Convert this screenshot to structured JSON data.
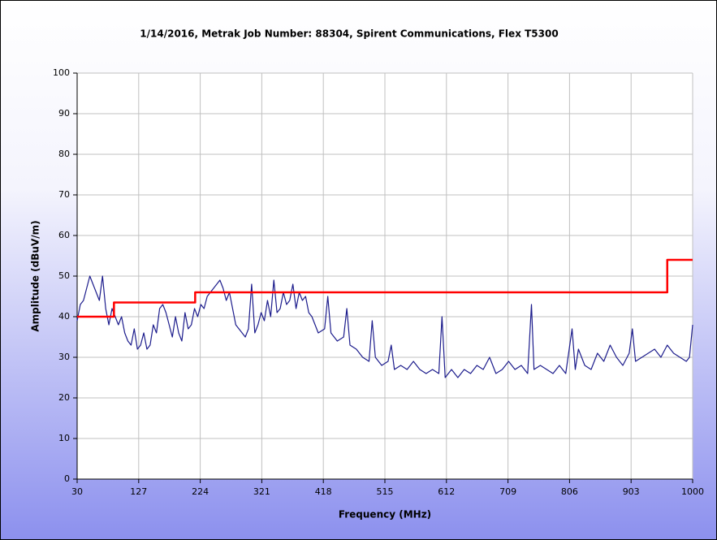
{
  "chart_data": {
    "type": "line",
    "title": "1/14/2016, Metrak Job Number: 88304, Spirent Communications, Flex T5300",
    "x_label": "Frequency (MHz)",
    "y_label": "Amplitude (dBuV/m)",
    "xlim": [
      30,
      1000
    ],
    "xticks": [
      30,
      127,
      224,
      321,
      418,
      515,
      612,
      709,
      806,
      903,
      1000
    ],
    "ylim": [
      0,
      100
    ],
    "yticks": [
      0,
      10,
      20,
      30,
      40,
      50,
      60,
      70,
      80,
      90,
      100
    ],
    "grid": true,
    "series": [
      {
        "color": "#1c1c8c",
        "x": [
          30,
          35,
          40,
          45,
          50,
          55,
          60,
          65,
          70,
          75,
          80,
          85,
          90,
          95,
          100,
          105,
          110,
          115,
          120,
          125,
          130,
          135,
          140,
          145,
          150,
          155,
          160,
          165,
          170,
          175,
          180,
          185,
          190,
          195,
          200,
          205,
          210,
          215,
          220,
          225,
          230,
          235,
          240,
          245,
          250,
          255,
          260,
          265,
          270,
          275,
          280,
          285,
          290,
          295,
          300,
          305,
          310,
          315,
          320,
          325,
          330,
          335,
          340,
          345,
          350,
          355,
          360,
          365,
          370,
          375,
          380,
          385,
          390,
          395,
          400,
          410,
          420,
          425,
          430,
          440,
          450,
          455,
          460,
          470,
          480,
          490,
          495,
          500,
          510,
          520,
          525,
          530,
          540,
          550,
          560,
          570,
          580,
          590,
          600,
          605,
          610,
          620,
          630,
          640,
          650,
          660,
          670,
          680,
          690,
          700,
          710,
          720,
          730,
          740,
          746,
          750,
          760,
          770,
          780,
          790,
          800,
          810,
          815,
          820,
          830,
          840,
          850,
          860,
          870,
          880,
          890,
          900,
          905,
          910,
          920,
          930,
          940,
          950,
          960,
          970,
          980,
          990,
          995,
          1000
        ],
        "values": [
          39,
          43,
          44,
          47,
          50,
          48,
          46,
          44,
          50,
          42,
          38,
          42,
          40,
          38,
          40,
          36,
          34,
          33,
          37,
          32,
          33,
          36,
          32,
          33,
          38,
          36,
          42,
          43,
          41,
          38,
          35,
          40,
          36,
          34,
          41,
          37,
          38,
          42,
          40,
          43,
          42,
          45,
          46,
          47,
          48,
          49,
          47,
          44,
          46,
          42,
          38,
          37,
          36,
          35,
          37,
          48,
          36,
          38,
          41,
          39,
          44,
          40,
          49,
          41,
          42,
          46,
          43,
          44,
          48,
          42,
          46,
          44,
          45,
          41,
          40,
          36,
          37,
          45,
          36,
          34,
          35,
          42,
          33,
          32,
          30,
          29,
          39,
          30,
          28,
          29,
          33,
          27,
          28,
          27,
          29,
          27,
          26,
          27,
          26,
          40,
          25,
          27,
          25,
          27,
          26,
          28,
          27,
          30,
          26,
          27,
          29,
          27,
          28,
          26,
          43,
          27,
          28,
          27,
          26,
          28,
          26,
          37,
          27,
          32,
          28,
          27,
          31,
          29,
          33,
          30,
          28,
          31,
          37,
          29,
          30,
          31,
          32,
          30,
          33,
          31,
          30,
          29,
          30,
          38
        ]
      },
      {
        "color": "#ff0000",
        "x": [
          30,
          88,
          88,
          216,
          216,
          960,
          960,
          1000
        ],
        "values": [
          40,
          40,
          43.5,
          43.5,
          46,
          46,
          54,
          54
        ]
      }
    ]
  }
}
